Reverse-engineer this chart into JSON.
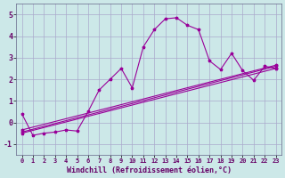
{
  "xlabel": "Windchill (Refroidissement éolien,°C)",
  "bg_color": "#cce8e8",
  "grid_color": "#aaaacc",
  "line_color": "#990099",
  "spine_color": "#666688",
  "xlim": [
    -0.5,
    23.5
  ],
  "ylim": [
    -1.5,
    5.5
  ],
  "xticks": [
    0,
    1,
    2,
    3,
    4,
    5,
    6,
    7,
    8,
    9,
    10,
    11,
    12,
    13,
    14,
    15,
    16,
    17,
    18,
    19,
    20,
    21,
    22,
    23
  ],
  "yticks": [
    -1,
    0,
    1,
    2,
    3,
    4,
    5
  ],
  "series1_x": [
    0,
    1,
    2,
    3,
    4,
    5,
    6,
    7,
    8,
    9,
    10,
    11,
    12,
    13,
    14,
    15,
    16,
    17,
    18,
    19,
    20,
    21,
    22,
    23
  ],
  "series1_y": [
    0.4,
    -0.6,
    -0.5,
    -0.45,
    -0.35,
    -0.4,
    0.5,
    1.5,
    2.0,
    2.5,
    1.6,
    3.5,
    4.3,
    4.8,
    4.85,
    4.5,
    4.3,
    2.85,
    2.45,
    3.2,
    2.4,
    1.95,
    2.6,
    2.5
  ],
  "series2_x": [
    0,
    23
  ],
  "series2_y": [
    -0.5,
    2.5
  ],
  "series3_x": [
    0,
    23
  ],
  "series3_y": [
    -0.45,
    2.6
  ],
  "series4_x": [
    0,
    23
  ],
  "series4_y": [
    -0.35,
    2.65
  ]
}
